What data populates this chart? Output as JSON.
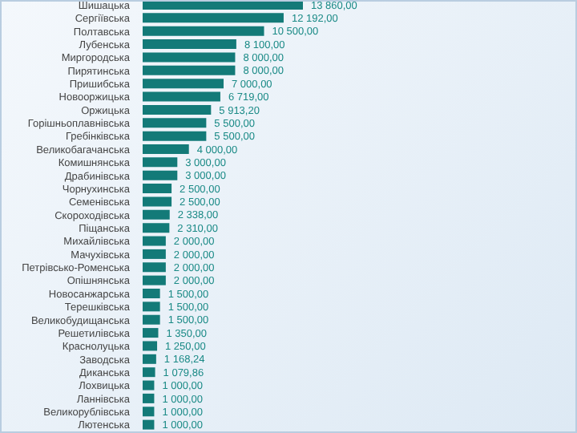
{
  "chart_data": {
    "type": "bar",
    "orientation": "horizontal",
    "categories": [
      "Шишацька",
      "Сергіївська",
      "Полтавська",
      "Лубенська",
      "Миргородська",
      "Пирятинська",
      "Пришибська",
      "Новооржицька",
      "Оржицька",
      "Горішньоплавнівська",
      "Гребінківська",
      "Великобагачанська",
      "Комишнянська",
      "Драбинівська",
      "Чорнухинська",
      "Семенівська",
      "Скороходівська",
      "Піщанська",
      "Михайлівська",
      "Мачухівська",
      "Петрівсько-Роменська",
      "Опішнянська",
      "Новосанжарська",
      "Терешківська",
      "Великобудищанська",
      "Решетилівська",
      "Краснолуцька",
      "Заводська",
      "Диканська",
      "Лохвицька",
      "Ланнівська",
      "Великорублівська",
      "Лютенська"
    ],
    "values": [
      13860,
      12192,
      10500,
      8100,
      8000,
      8000,
      7000,
      6719,
      5913.2,
      5500,
      5500,
      4000,
      3000,
      3000,
      2500,
      2500,
      2338,
      2310,
      2000,
      2000,
      2000,
      2000,
      1500,
      1500,
      1500,
      1350,
      1250,
      1168.24,
      1079.86,
      1000,
      1000,
      1000,
      1000
    ],
    "value_labels": [
      "13 860,00",
      "12 192,00",
      "10 500,00",
      "8 100,00",
      "8 000,00",
      "8 000,00",
      "7 000,00",
      "6 719,00",
      "5 913,20",
      "5 500,00",
      "5 500,00",
      "4 000,00",
      "3 000,00",
      "3 000,00",
      "2 500,00",
      "2 500,00",
      "2 338,00",
      "2 310,00",
      "2 000,00",
      "2 000,00",
      "2 000,00",
      "2 000,00",
      "1 500,00",
      "1 500,00",
      "1 500,00",
      "1 350,00",
      "1 250,00",
      "1 168,24",
      "1 079,86",
      "1 000,00",
      "1 000,00",
      "1 000,00",
      "1 000,00"
    ],
    "color": "#137a78",
    "tick_labels": "y"
  }
}
